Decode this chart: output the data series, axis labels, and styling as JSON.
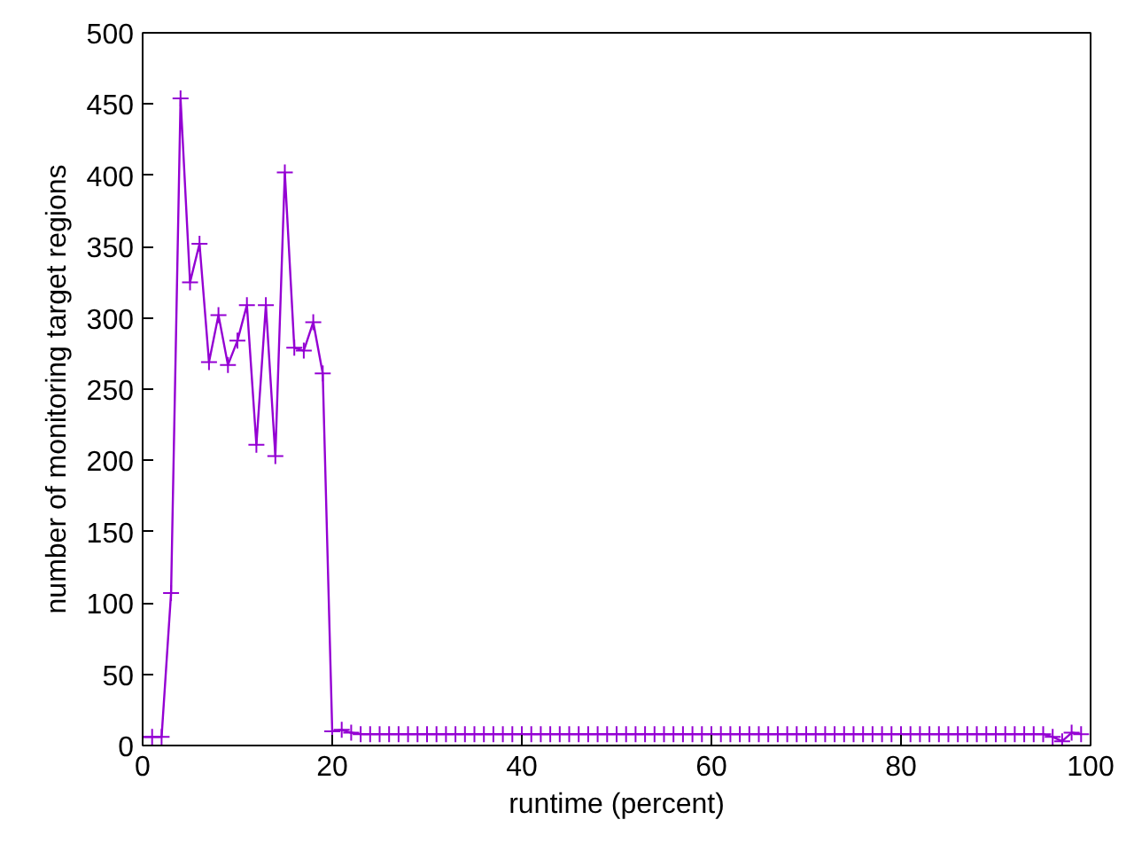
{
  "chart_data": {
    "type": "line",
    "xlabel": "runtime (percent)",
    "ylabel": "number of monitoring target regions",
    "x": [
      0,
      1,
      2,
      3,
      4,
      5,
      6,
      7,
      8,
      9,
      10,
      11,
      12,
      13,
      14,
      15,
      16,
      17,
      18,
      19,
      20,
      21,
      22,
      23,
      24,
      25,
      26,
      27,
      28,
      29,
      30,
      31,
      32,
      33,
      34,
      35,
      36,
      37,
      38,
      39,
      40,
      41,
      42,
      43,
      44,
      45,
      46,
      47,
      48,
      49,
      50,
      51,
      52,
      53,
      54,
      55,
      56,
      57,
      58,
      59,
      60,
      61,
      62,
      63,
      64,
      65,
      66,
      67,
      68,
      69,
      70,
      71,
      72,
      73,
      74,
      75,
      76,
      77,
      78,
      79,
      80,
      81,
      82,
      83,
      84,
      85,
      86,
      87,
      88,
      89,
      90,
      91,
      92,
      93,
      94,
      95,
      96,
      97,
      98,
      99
    ],
    "series": [
      {
        "color": "#9400d3",
        "values": [
          6,
          6,
          6,
          107,
          454,
          325,
          352,
          269,
          302,
          267,
          284,
          309,
          211,
          309,
          203,
          402,
          279,
          277,
          297,
          261,
          10,
          11,
          9,
          8,
          8,
          8,
          8,
          8,
          8,
          8,
          8,
          8,
          8,
          8,
          8,
          8,
          8,
          8,
          8,
          8,
          8,
          8,
          8,
          8,
          8,
          8,
          8,
          8,
          8,
          8,
          8,
          8,
          8,
          8,
          8,
          8,
          8,
          8,
          8,
          8,
          8,
          8,
          8,
          8,
          8,
          8,
          8,
          8,
          8,
          8,
          8,
          8,
          8,
          8,
          8,
          8,
          8,
          8,
          8,
          8,
          8,
          8,
          8,
          8,
          8,
          8,
          8,
          8,
          8,
          8,
          8,
          8,
          8,
          8,
          8,
          8,
          6,
          3,
          9,
          8
        ]
      }
    ],
    "xlim": [
      0,
      100
    ],
    "ylim": [
      0,
      500
    ],
    "xticks": [
      0,
      20,
      40,
      60,
      80,
      100
    ],
    "yticks": [
      0,
      50,
      100,
      150,
      200,
      250,
      300,
      350,
      400,
      450,
      500
    ],
    "marker": "cross",
    "grid": false
  }
}
